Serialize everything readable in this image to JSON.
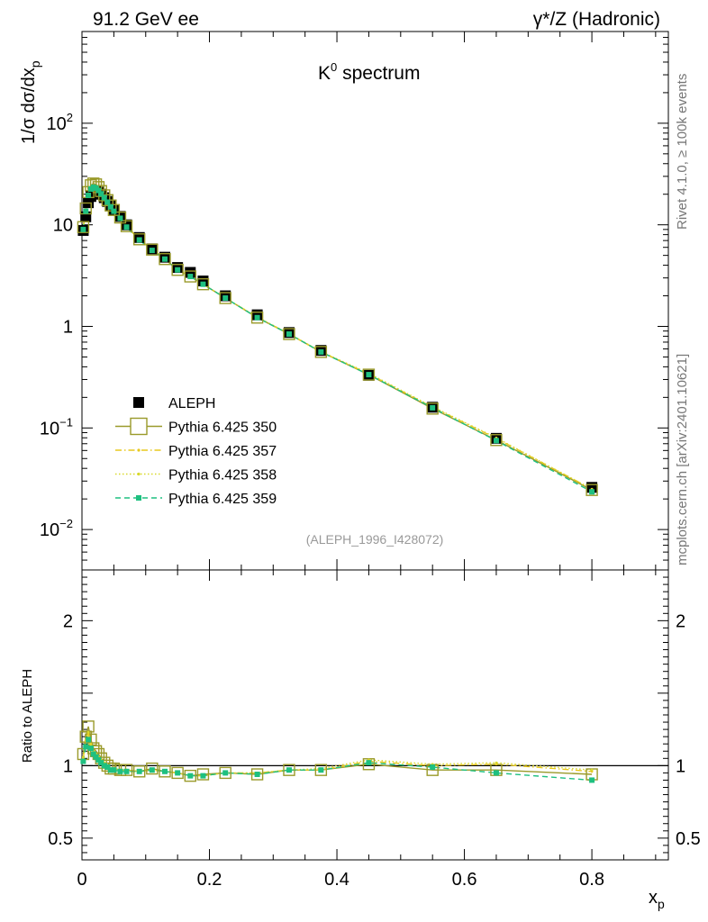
{
  "header": {
    "left": "91.2 GeV ee",
    "right": "γ*/Z (Hadronic)"
  },
  "side_text": {
    "rivet": "Rivet 4.1.0, ≥ 100k events",
    "mcplots": "mcplots.cern.ch [arXiv:2401.10621]"
  },
  "chart_data": [
    {
      "type": "scatter",
      "panel": "main",
      "title": "K0 spectrum",
      "title_base": "K",
      "title_sup": "0",
      "title_rest": " spectrum",
      "ylabel": "1/σ dσ/dxp",
      "ylabel_parts": {
        "pre": "1/σ   dσ/dx",
        "sub": "p"
      },
      "xlabel": "xp",
      "xlabel_parts": {
        "pre": "x",
        "sub": "p"
      },
      "yscale": "log",
      "xlim": [
        0,
        0.92
      ],
      "ylim": [
        0.004,
        800
      ],
      "yticks": [
        {
          "value": 0.01,
          "base": "10",
          "sup": "−2"
        },
        {
          "value": 0.1,
          "base": "10",
          "sup": "−1"
        },
        {
          "value": 1,
          "base": "1",
          "sup": ""
        },
        {
          "value": 10,
          "base": "10",
          "sup": ""
        },
        {
          "value": 100,
          "base": "10",
          "sup": "2"
        }
      ],
      "analysis_tag": "(ALEPH_1996_I428072)",
      "legend_position": "left",
      "x": [
        0.002,
        0.006,
        0.01,
        0.014,
        0.018,
        0.022,
        0.026,
        0.03,
        0.035,
        0.04,
        0.045,
        0.05,
        0.06,
        0.07,
        0.09,
        0.11,
        0.13,
        0.15,
        0.17,
        0.19,
        0.225,
        0.275,
        0.325,
        0.375,
        0.45,
        0.55,
        0.65,
        0.8
      ],
      "series": [
        {
          "name": "ALEPH",
          "color": "#000000",
          "style": "data",
          "values": [
            8.8,
            12.0,
            16.5,
            19.0,
            21.0,
            21.5,
            21.0,
            20.0,
            18.5,
            17.0,
            15.5,
            14.2,
            12.1,
            10.0,
            7.5,
            5.8,
            4.8,
            3.8,
            3.4,
            2.8,
            2.0,
            1.3,
            0.87,
            0.58,
            0.33,
            0.16,
            0.079,
            0.026
          ]
        },
        {
          "name": "Pythia 6.425 350",
          "color": "#9a9a2a",
          "style": "solid-open-square",
          "values": [
            9.5,
            14.5,
            21.0,
            24.5,
            25.5,
            25.0,
            23.5,
            21.5,
            19.5,
            17.5,
            15.5,
            14.0,
            11.8,
            9.7,
            7.2,
            5.7,
            4.6,
            3.6,
            3.1,
            2.6,
            1.9,
            1.22,
            0.84,
            0.56,
            0.335,
            0.155,
            0.076,
            0.0245
          ]
        },
        {
          "name": "Pythia 6.425 357",
          "color": "#e8c81e",
          "style": "dashdot",
          "values": [
            9.2,
            14.0,
            20.0,
            23.0,
            24.0,
            23.5,
            22.0,
            20.5,
            18.8,
            17.0,
            15.2,
            13.8,
            11.7,
            9.6,
            7.2,
            5.6,
            4.6,
            3.6,
            3.1,
            2.6,
            1.9,
            1.23,
            0.84,
            0.56,
            0.34,
            0.16,
            0.079,
            0.025
          ]
        },
        {
          "name": "Pythia 6.425 358",
          "color": "#d8d82a",
          "style": "dotted",
          "values": [
            9.3,
            14.2,
            20.3,
            23.3,
            24.2,
            23.6,
            22.2,
            20.6,
            18.9,
            17.1,
            15.3,
            13.9,
            11.8,
            9.7,
            7.2,
            5.6,
            4.6,
            3.6,
            3.1,
            2.6,
            1.9,
            1.24,
            0.845,
            0.565,
            0.345,
            0.162,
            0.08,
            0.025
          ]
        },
        {
          "name": "Pythia 6.425 359",
          "color": "#1ec080",
          "style": "dashed-filled-square",
          "values": [
            9.0,
            13.6,
            19.5,
            22.5,
            23.5,
            23.0,
            21.8,
            20.2,
            18.5,
            16.7,
            15.0,
            13.6,
            11.6,
            9.5,
            7.1,
            5.6,
            4.6,
            3.6,
            3.1,
            2.6,
            1.9,
            1.22,
            0.84,
            0.56,
            0.335,
            0.158,
            0.075,
            0.0235
          ]
        }
      ]
    },
    {
      "type": "line",
      "panel": "ratio",
      "ylabel": "Ratio to ALEPH",
      "xlim": [
        0,
        0.92
      ],
      "ylim": [
        0.35,
        2.35
      ],
      "yticks": [
        0.5,
        1,
        2
      ],
      "ytick_labels": [
        "0.5",
        "1",
        "2"
      ],
      "xticks": [
        0,
        0.2,
        0.4,
        0.6,
        0.8
      ],
      "xtick_labels": [
        "0",
        "0.2",
        "0.4",
        "0.6",
        "0.8"
      ],
      "reference_line": 1,
      "x": [
        0.002,
        0.006,
        0.01,
        0.014,
        0.018,
        0.022,
        0.026,
        0.03,
        0.035,
        0.04,
        0.045,
        0.05,
        0.06,
        0.07,
        0.09,
        0.11,
        0.13,
        0.15,
        0.17,
        0.19,
        0.225,
        0.275,
        0.325,
        0.375,
        0.45,
        0.55,
        0.65,
        0.8
      ],
      "series": [
        {
          "name": "Pythia 6.425 350",
          "color": "#9a9a2a",
          "style": "solid-open-square",
          "values": [
            1.08,
            1.2,
            1.27,
            1.18,
            1.12,
            1.1,
            1.08,
            1.05,
            1.02,
            1.0,
            0.98,
            0.98,
            0.97,
            0.97,
            0.96,
            0.98,
            0.96,
            0.95,
            0.93,
            0.94,
            0.95,
            0.94,
            0.97,
            0.97,
            1.01,
            0.97,
            0.97,
            0.94
          ]
        },
        {
          "name": "Pythia 6.425 357",
          "color": "#e8c81e",
          "style": "dashdot",
          "values": [
            1.05,
            1.17,
            1.22,
            1.14,
            1.1,
            1.08,
            1.06,
            1.04,
            1.01,
            1.0,
            0.98,
            0.98,
            0.97,
            0.97,
            0.96,
            0.97,
            0.96,
            0.95,
            0.93,
            0.93,
            0.95,
            0.95,
            0.97,
            0.97,
            1.03,
            1.0,
            1.01,
            0.96
          ]
        },
        {
          "name": "Pythia 6.425 358",
          "color": "#d8d82a",
          "style": "dotted",
          "values": [
            1.06,
            1.18,
            1.23,
            1.15,
            1.1,
            1.08,
            1.06,
            1.04,
            1.02,
            1.0,
            0.98,
            0.98,
            0.97,
            0.97,
            0.96,
            0.97,
            0.96,
            0.95,
            0.93,
            0.93,
            0.95,
            0.95,
            0.97,
            0.98,
            1.04,
            1.01,
            1.02,
            0.97
          ]
        },
        {
          "name": "Pythia 6.425 359",
          "color": "#1ec080",
          "style": "dashed-filled-square",
          "values": [
            1.03,
            1.13,
            1.18,
            1.12,
            1.08,
            1.06,
            1.04,
            1.02,
            1.0,
            0.99,
            0.97,
            0.97,
            0.96,
            0.96,
            0.96,
            0.97,
            0.96,
            0.95,
            0.93,
            0.93,
            0.95,
            0.94,
            0.97,
            0.97,
            1.02,
            0.99,
            0.95,
            0.9
          ]
        }
      ]
    }
  ]
}
